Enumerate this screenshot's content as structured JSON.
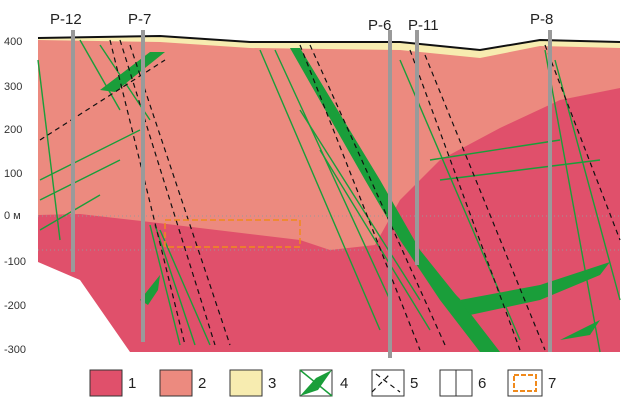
{
  "boreholes": [
    "P-12",
    "P-7",
    "P-6",
    "P-11",
    "P-8"
  ],
  "depth_labels": [
    "400",
    "300",
    "200",
    "100",
    "0 м",
    "-100",
    "-200",
    "-300"
  ],
  "legend": [
    "1",
    "2",
    "3",
    "4",
    "5",
    "6",
    "7"
  ]
}
